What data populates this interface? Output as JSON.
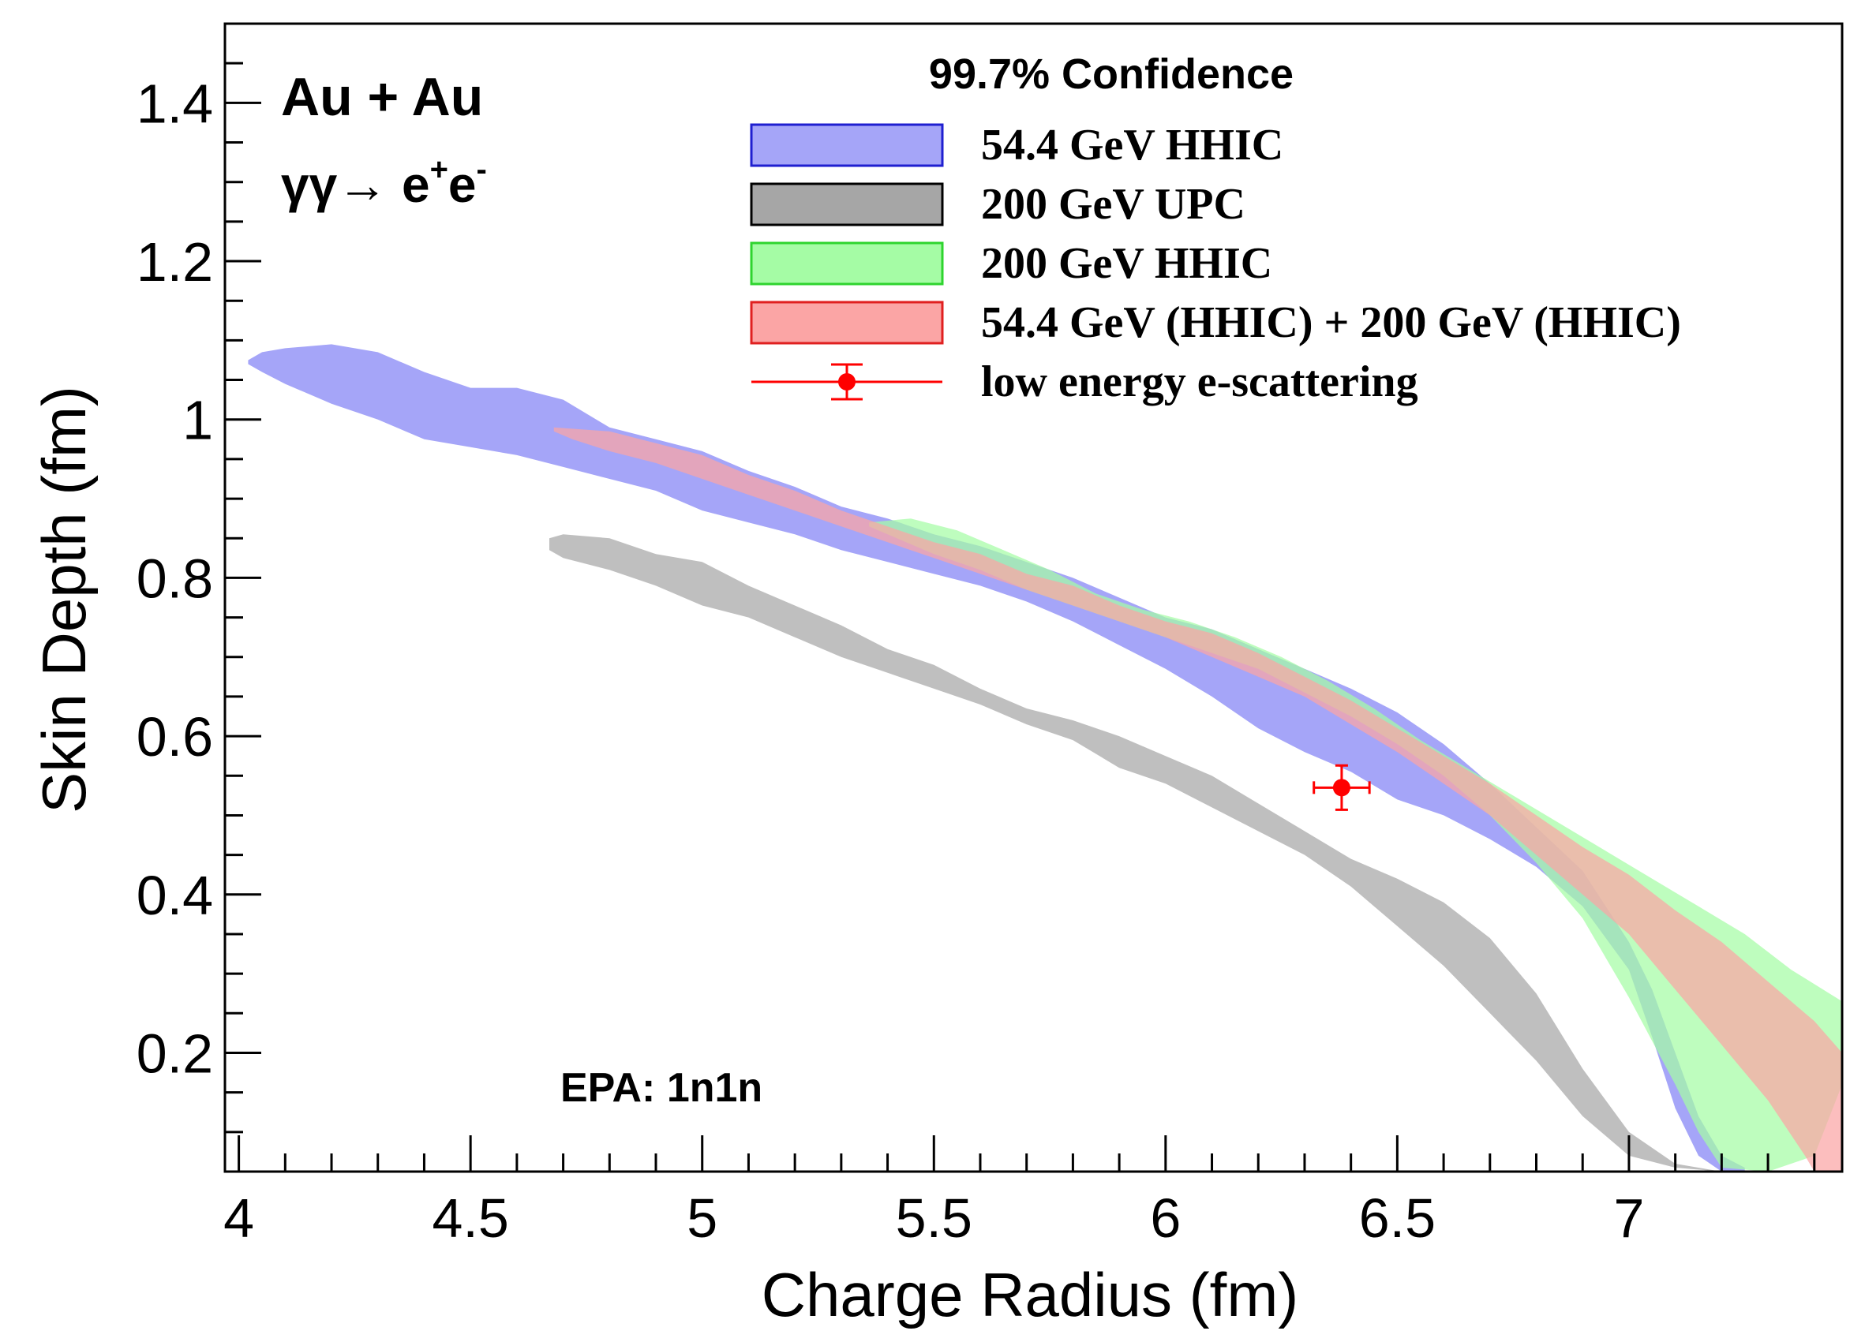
{
  "chart_data": {
    "type": "area",
    "xlabel": "Charge Radius (fm)",
    "ylabel": "Skin Depth (fm)",
    "xlim": [
      3.97,
      7.46
    ],
    "ylim": [
      0.05,
      1.5
    ],
    "x_ticks": [
      4,
      4.5,
      5,
      5.5,
      6,
      6.5,
      7
    ],
    "x_tick_labels": [
      "4",
      "4.5",
      "5",
      "5.5",
      "6",
      "6.5",
      "7"
    ],
    "y_ticks": [
      0.2,
      0.4,
      0.6,
      0.8,
      1.0,
      1.2,
      1.4
    ],
    "y_tick_labels": [
      "0.2",
      "0.4",
      "0.6",
      "0.8",
      "1",
      "1.2",
      "1.4"
    ],
    "grid": false,
    "legend_placement": "top-right",
    "legend_title": "99.7% Confidence",
    "annotations": {
      "system": "Au + Au",
      "process_prefix": "γγ→ e",
      "process_plus": "+",
      "process_e": "e",
      "process_minus": "-",
      "epa": "EPA: 1n1n"
    },
    "series": [
      {
        "name": "54.4 GeV HHIC",
        "fill": "#a5a5f8",
        "stroke": "#1f1fd0",
        "upper": [
          [
            4.02,
            1.075
          ],
          [
            4.05,
            1.085
          ],
          [
            4.1,
            1.09
          ],
          [
            4.2,
            1.095
          ],
          [
            4.3,
            1.085
          ],
          [
            4.4,
            1.06
          ],
          [
            4.5,
            1.04
          ],
          [
            4.6,
            1.04
          ],
          [
            4.7,
            1.025
          ],
          [
            4.8,
            0.99
          ],
          [
            4.9,
            0.975
          ],
          [
            5.0,
            0.96
          ],
          [
            5.1,
            0.935
          ],
          [
            5.2,
            0.915
          ],
          [
            5.3,
            0.89
          ],
          [
            5.4,
            0.875
          ],
          [
            5.5,
            0.855
          ],
          [
            5.6,
            0.84
          ],
          [
            5.7,
            0.82
          ],
          [
            5.8,
            0.8
          ],
          [
            5.9,
            0.775
          ],
          [
            6.0,
            0.75
          ],
          [
            6.1,
            0.735
          ],
          [
            6.2,
            0.71
          ],
          [
            6.3,
            0.685
          ],
          [
            6.4,
            0.66
          ],
          [
            6.5,
            0.63
          ],
          [
            6.6,
            0.59
          ],
          [
            6.7,
            0.54
          ],
          [
            6.8,
            0.485
          ],
          [
            6.9,
            0.43
          ],
          [
            7.0,
            0.34
          ],
          [
            7.05,
            0.28
          ],
          [
            7.1,
            0.2
          ],
          [
            7.15,
            0.12
          ],
          [
            7.2,
            0.07
          ],
          [
            7.25,
            0.055
          ]
        ],
        "lower": [
          [
            7.25,
            0.045
          ],
          [
            7.2,
            0.05
          ],
          [
            7.15,
            0.07
          ],
          [
            7.1,
            0.13
          ],
          [
            7.05,
            0.22
          ],
          [
            7.0,
            0.305
          ],
          [
            6.9,
            0.385
          ],
          [
            6.8,
            0.435
          ],
          [
            6.7,
            0.47
          ],
          [
            6.6,
            0.5
          ],
          [
            6.5,
            0.52
          ],
          [
            6.4,
            0.555
          ],
          [
            6.3,
            0.58
          ],
          [
            6.2,
            0.61
          ],
          [
            6.1,
            0.65
          ],
          [
            6.0,
            0.685
          ],
          [
            5.9,
            0.715
          ],
          [
            5.8,
            0.745
          ],
          [
            5.7,
            0.77
          ],
          [
            5.6,
            0.79
          ],
          [
            5.5,
            0.805
          ],
          [
            5.4,
            0.82
          ],
          [
            5.3,
            0.835
          ],
          [
            5.2,
            0.855
          ],
          [
            5.1,
            0.87
          ],
          [
            5.0,
            0.885
          ],
          [
            4.9,
            0.91
          ],
          [
            4.8,
            0.925
          ],
          [
            4.7,
            0.94
          ],
          [
            4.6,
            0.955
          ],
          [
            4.5,
            0.965
          ],
          [
            4.4,
            0.975
          ],
          [
            4.3,
            1.0
          ],
          [
            4.2,
            1.02
          ],
          [
            4.1,
            1.045
          ],
          [
            4.05,
            1.06
          ],
          [
            4.02,
            1.07
          ]
        ]
      },
      {
        "name": "200 GeV UPC",
        "fill": "#a6a6a6",
        "stroke": "#000000",
        "upper": [
          [
            4.67,
            0.85
          ],
          [
            4.7,
            0.855
          ],
          [
            4.8,
            0.85
          ],
          [
            4.9,
            0.83
          ],
          [
            5.0,
            0.82
          ],
          [
            5.1,
            0.79
          ],
          [
            5.2,
            0.765
          ],
          [
            5.3,
            0.74
          ],
          [
            5.4,
            0.71
          ],
          [
            5.5,
            0.69
          ],
          [
            5.6,
            0.66
          ],
          [
            5.7,
            0.635
          ],
          [
            5.8,
            0.62
          ],
          [
            5.9,
            0.6
          ],
          [
            6.0,
            0.575
          ],
          [
            6.1,
            0.55
          ],
          [
            6.2,
            0.515
          ],
          [
            6.3,
            0.48
          ],
          [
            6.4,
            0.445
          ],
          [
            6.5,
            0.42
          ],
          [
            6.6,
            0.39
          ],
          [
            6.7,
            0.345
          ],
          [
            6.8,
            0.275
          ],
          [
            6.9,
            0.18
          ],
          [
            7.0,
            0.1
          ],
          [
            7.1,
            0.06
          ],
          [
            7.2,
            0.05
          ],
          [
            7.3,
            0.045
          ]
        ],
        "lower": [
          [
            7.3,
            0.045
          ],
          [
            7.2,
            0.05
          ],
          [
            7.1,
            0.055
          ],
          [
            7.0,
            0.07
          ],
          [
            6.9,
            0.12
          ],
          [
            6.8,
            0.19
          ],
          [
            6.7,
            0.25
          ],
          [
            6.6,
            0.31
          ],
          [
            6.5,
            0.36
          ],
          [
            6.4,
            0.41
          ],
          [
            6.3,
            0.45
          ],
          [
            6.2,
            0.48
          ],
          [
            6.1,
            0.51
          ],
          [
            6.0,
            0.54
          ],
          [
            5.9,
            0.56
          ],
          [
            5.8,
            0.595
          ],
          [
            5.7,
            0.615
          ],
          [
            5.6,
            0.64
          ],
          [
            5.5,
            0.66
          ],
          [
            5.4,
            0.68
          ],
          [
            5.3,
            0.7
          ],
          [
            5.2,
            0.725
          ],
          [
            5.1,
            0.75
          ],
          [
            5.0,
            0.765
          ],
          [
            4.9,
            0.79
          ],
          [
            4.8,
            0.81
          ],
          [
            4.7,
            0.825
          ],
          [
            4.67,
            0.835
          ]
        ]
      },
      {
        "name": "200 GeV HHIC",
        "fill": "#a5fca5",
        "stroke": "#2ed42e",
        "upper": [
          [
            5.36,
            0.87
          ],
          [
            5.45,
            0.875
          ],
          [
            5.55,
            0.86
          ],
          [
            5.65,
            0.835
          ],
          [
            5.75,
            0.81
          ],
          [
            5.85,
            0.78
          ],
          [
            5.95,
            0.76
          ],
          [
            6.05,
            0.745
          ],
          [
            6.15,
            0.725
          ],
          [
            6.25,
            0.7
          ],
          [
            6.35,
            0.67
          ],
          [
            6.45,
            0.635
          ],
          [
            6.55,
            0.595
          ],
          [
            6.65,
            0.56
          ],
          [
            6.75,
            0.525
          ],
          [
            6.85,
            0.49
          ],
          [
            6.95,
            0.455
          ],
          [
            7.05,
            0.42
          ],
          [
            7.15,
            0.385
          ],
          [
            7.25,
            0.35
          ],
          [
            7.35,
            0.305
          ],
          [
            7.46,
            0.265
          ]
        ],
        "lower": [
          [
            7.46,
            0.16
          ],
          [
            7.4,
            0.07
          ],
          [
            7.3,
            0.05
          ],
          [
            7.2,
            0.055
          ],
          [
            7.15,
            0.1
          ],
          [
            7.1,
            0.16
          ],
          [
            7.0,
            0.27
          ],
          [
            6.9,
            0.37
          ],
          [
            6.8,
            0.44
          ],
          [
            6.7,
            0.5
          ],
          [
            6.6,
            0.55
          ],
          [
            6.5,
            0.59
          ],
          [
            6.4,
            0.625
          ],
          [
            6.3,
            0.655
          ],
          [
            6.2,
            0.685
          ],
          [
            6.1,
            0.705
          ],
          [
            6.0,
            0.725
          ],
          [
            5.9,
            0.745
          ],
          [
            5.8,
            0.765
          ],
          [
            5.7,
            0.785
          ],
          [
            5.6,
            0.81
          ],
          [
            5.5,
            0.83
          ],
          [
            5.4,
            0.855
          ],
          [
            5.36,
            0.865
          ]
        ]
      },
      {
        "name": "54.4 GeV (HHIC) + 200 GeV (HHIC)",
        "fill": "#fba5a5",
        "stroke": "#e02020",
        "upper": [
          [
            4.68,
            0.99
          ],
          [
            4.8,
            0.985
          ],
          [
            4.9,
            0.97
          ],
          [
            5.0,
            0.955
          ],
          [
            5.1,
            0.93
          ],
          [
            5.2,
            0.91
          ],
          [
            5.3,
            0.885
          ],
          [
            5.4,
            0.865
          ],
          [
            5.5,
            0.845
          ],
          [
            5.6,
            0.83
          ],
          [
            5.7,
            0.805
          ],
          [
            5.8,
            0.79
          ],
          [
            5.9,
            0.765
          ],
          [
            6.0,
            0.745
          ],
          [
            6.1,
            0.73
          ],
          [
            6.2,
            0.705
          ],
          [
            6.3,
            0.675
          ],
          [
            6.4,
            0.645
          ],
          [
            6.5,
            0.61
          ],
          [
            6.6,
            0.575
          ],
          [
            6.7,
            0.54
          ],
          [
            6.8,
            0.5
          ],
          [
            6.9,
            0.46
          ],
          [
            7.0,
            0.425
          ],
          [
            7.1,
            0.38
          ],
          [
            7.2,
            0.34
          ],
          [
            7.3,
            0.29
          ],
          [
            7.4,
            0.24
          ],
          [
            7.46,
            0.2
          ]
        ],
        "lower": [
          [
            7.46,
            0.05
          ],
          [
            7.4,
            0.05
          ],
          [
            7.38,
            0.07
          ],
          [
            7.3,
            0.14
          ],
          [
            7.2,
            0.21
          ],
          [
            7.1,
            0.28
          ],
          [
            7.0,
            0.35
          ],
          [
            6.9,
            0.4
          ],
          [
            6.8,
            0.45
          ],
          [
            6.7,
            0.5
          ],
          [
            6.6,
            0.54
          ],
          [
            6.5,
            0.58
          ],
          [
            6.4,
            0.615
          ],
          [
            6.3,
            0.65
          ],
          [
            6.2,
            0.675
          ],
          [
            6.1,
            0.7
          ],
          [
            6.0,
            0.725
          ],
          [
            5.9,
            0.745
          ],
          [
            5.8,
            0.765
          ],
          [
            5.7,
            0.785
          ],
          [
            5.6,
            0.805
          ],
          [
            5.5,
            0.825
          ],
          [
            5.4,
            0.845
          ],
          [
            5.3,
            0.865
          ],
          [
            5.2,
            0.885
          ],
          [
            5.1,
            0.905
          ],
          [
            5.0,
            0.925
          ],
          [
            4.9,
            0.945
          ],
          [
            4.8,
            0.96
          ],
          [
            4.72,
            0.975
          ],
          [
            4.68,
            0.985
          ]
        ]
      }
    ],
    "points": [
      {
        "name": "low energy e-scattering",
        "color": "#ff0000",
        "x": 6.38,
        "y": 0.535,
        "xerr": 0.06,
        "yerr": 0.028
      }
    ]
  }
}
